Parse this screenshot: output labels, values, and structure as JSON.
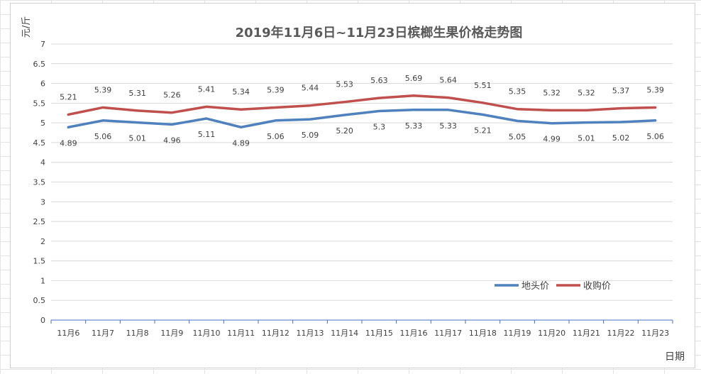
{
  "chart_data": {
    "type": "line",
    "title": "2019年11月6日~11月23日槟榔生果价格走势图",
    "ylabel": "元/斤",
    "xlabel": "日期",
    "ylim": [
      0,
      7
    ],
    "yticks": [
      "0",
      "0.5",
      "1",
      "1.5",
      "2",
      "2.5",
      "3",
      "3.5",
      "4",
      "4.5",
      "5",
      "5.5",
      "6",
      "6.5",
      "7"
    ],
    "grid": true,
    "legend_position": "bottom-right",
    "categories": [
      "11月6",
      "11月7",
      "11月8",
      "11月9",
      "11月10",
      "11月11",
      "11月12",
      "11月13",
      "11月14",
      "11月15",
      "11月16",
      "11月17",
      "11月18",
      "11月19",
      "11月20",
      "11月21",
      "11月22",
      "11月23"
    ],
    "series": [
      {
        "name": "地头价",
        "color": "#4f81bd",
        "values": [
          4.89,
          5.06,
          5.01,
          4.96,
          5.11,
          4.89,
          5.06,
          5.09,
          5.2,
          5.3,
          5.33,
          5.33,
          5.21,
          5.05,
          4.99,
          5.01,
          5.02,
          5.06
        ],
        "labels": [
          "4.89",
          "5.06",
          "5.01",
          "4.96",
          "5.11",
          "4.89",
          "5.06",
          "5.09",
          "5.20",
          "5.3",
          "5.33",
          "5.33",
          "5.21",
          "5.05",
          "4.99",
          "5.01",
          "5.02",
          "5.06"
        ]
      },
      {
        "name": "收购价",
        "color": "#c0504d",
        "values": [
          5.21,
          5.39,
          5.31,
          5.26,
          5.41,
          5.34,
          5.39,
          5.44,
          5.53,
          5.63,
          5.69,
          5.64,
          5.51,
          5.35,
          5.32,
          5.32,
          5.37,
          5.39
        ],
        "labels": [
          "5.21",
          "5.39",
          "5.31",
          "5.26",
          "5.41",
          "5.34",
          "5.39",
          "5.44",
          "5.53",
          "5.63",
          "5.69",
          "5.64",
          "5.51",
          "5.35",
          "5.32",
          "5.32",
          "5.37",
          "5.39"
        ]
      }
    ]
  }
}
